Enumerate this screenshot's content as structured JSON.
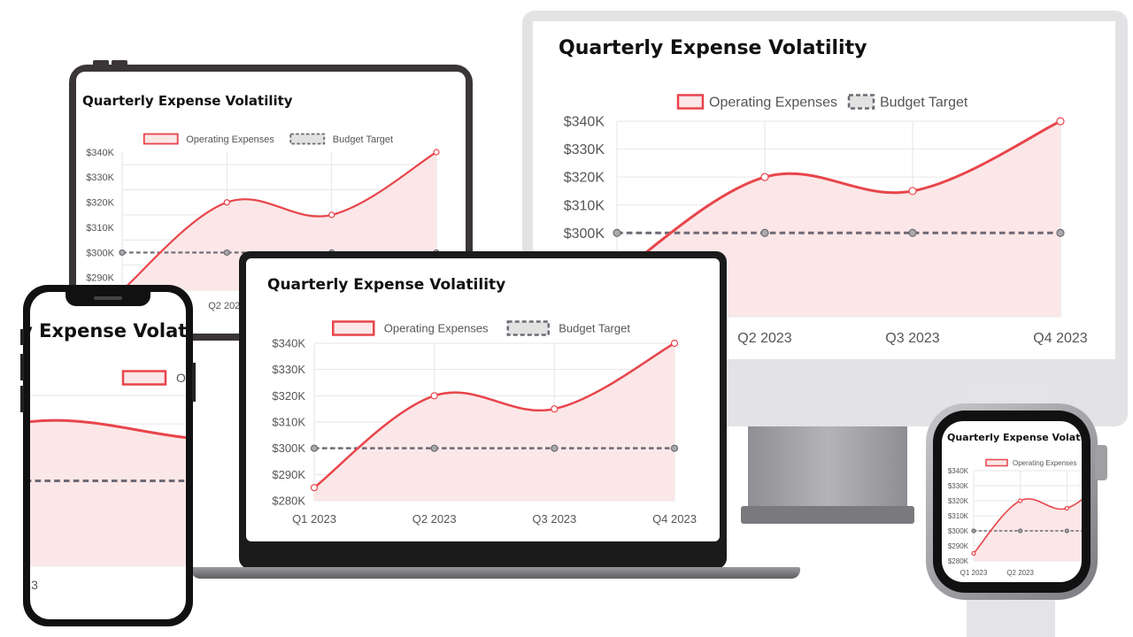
{
  "chart_data": {
    "type": "line",
    "title": "Quarterly Expense Volatility",
    "categories": [
      "Q1 2023",
      "Q2 2023",
      "Q3 2023",
      "Q4 2023"
    ],
    "series": [
      {
        "name": "Operating Expenses",
        "values": [
          285000,
          320000,
          315000,
          340000
        ],
        "color": "#e8454b",
        "fill": "#fbe7e7",
        "style": "solid-area"
      },
      {
        "name": "Budget Target",
        "values": [
          300000,
          300000,
          300000,
          300000
        ],
        "color": "#6e6a75",
        "style": "dashed"
      }
    ],
    "ylim": [
      280000,
      340000
    ],
    "yticks": [
      "$280K",
      "$290K",
      "$300K",
      "$310K",
      "$320K",
      "$330K",
      "$340K"
    ],
    "legend": "top-center",
    "grid": true
  }
}
